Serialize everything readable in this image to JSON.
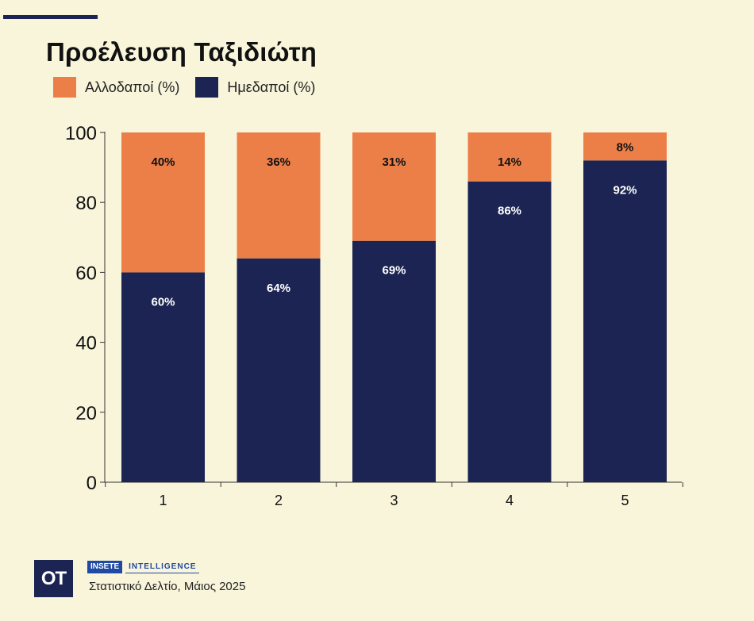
{
  "title": "Προέλευση Ταξιδιώτη",
  "legend": [
    {
      "label": "Αλλοδαποί (%)",
      "color": "#ec7f48"
    },
    {
      "label": "Ημεδαποί (%)",
      "color": "#1b2452"
    }
  ],
  "chart_data": {
    "type": "bar",
    "stacked": true,
    "categories": [
      "1",
      "2",
      "3",
      "4",
      "5"
    ],
    "series": [
      {
        "name": "Ημεδαποί (%)",
        "values": [
          60,
          64,
          69,
          86,
          92
        ],
        "labels": [
          "60%",
          "64%",
          "69%",
          "86%",
          "92%"
        ],
        "color": "#1b2452",
        "label_color": "#ffffff"
      },
      {
        "name": "Αλλοδαποί (%)",
        "values": [
          40,
          36,
          31,
          14,
          8
        ],
        "labels": [
          "40%",
          "36%",
          "31%",
          "14%",
          "8%"
        ],
        "color": "#ec7f48",
        "label_color": "#111111"
      }
    ],
    "title": "Προέλευση Ταξιδιώτη",
    "xlabel": "",
    "ylabel": "",
    "ylim": [
      0,
      100
    ],
    "yticks": [
      0,
      20,
      40,
      60,
      80,
      100
    ],
    "grid": false,
    "legend_position": "top-left"
  },
  "footer": {
    "logo_text": "OT",
    "brand_primary": "INSETE",
    "brand_secondary": "INTELLIGENCE",
    "source": "Στατιστικό Δελτίο, Μάιος 2025",
    "brand_color": "#1f49a3"
  }
}
